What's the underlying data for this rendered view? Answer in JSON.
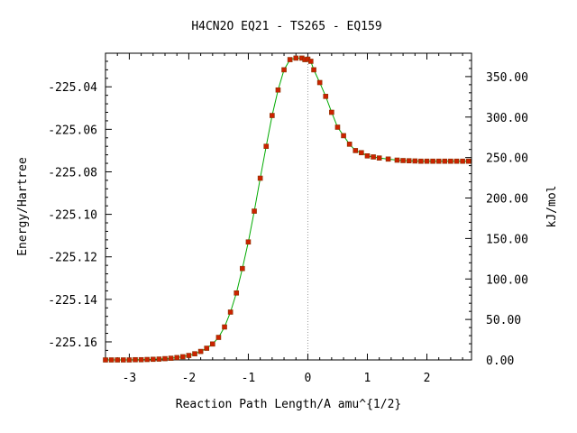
{
  "chart_data": {
    "type": "line",
    "title": "H4CN2O   EQ21 - TS265 - EQ159",
    "xlabel": "Reaction Path Length/A amu^{1/2}",
    "ylabel": "Energy/Hartree",
    "y2label": "kJ/mol",
    "xlim": [
      -3.4,
      2.75
    ],
    "ylim": [
      -225.1685,
      -225.0242
    ],
    "xticks": [
      "-3",
      "-2",
      "-1",
      "0",
      "1",
      "2"
    ],
    "xtick_values": [
      -3,
      -2,
      -1,
      0,
      1,
      2
    ],
    "yticks": [
      "-225.04",
      "-225.06",
      "-225.08",
      "-225.10",
      "-225.12",
      "-225.14",
      "-225.16"
    ],
    "ytick_values": [
      -225.04,
      -225.06,
      -225.08,
      -225.1,
      -225.12,
      -225.14,
      -225.16
    ],
    "y2ticks": [
      "0.00",
      "50.00",
      "100.00",
      "150.00",
      "200.00",
      "250.00",
      "300.00",
      "350.00"
    ],
    "y2tick_values": [
      0,
      50,
      100,
      150,
      200,
      250,
      300,
      350
    ],
    "y2_zero_hartree": -225.1685,
    "hartree_to_kjmol": 2625.5,
    "ts_marker_x": 0,
    "line_color": "#00aa00",
    "marker_color": "#cc2200",
    "series": [
      {
        "x": [
          -3.4,
          -3.3,
          -3.2,
          -3.1,
          -3.0,
          -2.9,
          -2.8,
          -2.7,
          -2.6,
          -2.5,
          -2.4,
          -2.3,
          -2.2,
          -2.1,
          -2.0,
          -1.9,
          -1.8,
          -1.7,
          -1.6,
          -1.5,
          -1.4,
          -1.3,
          -1.2,
          -1.1,
          -1.0,
          -0.9,
          -0.8,
          -0.7,
          -0.6,
          -0.5,
          -0.4,
          -0.3,
          -0.2,
          -0.1,
          -0.05,
          0.0,
          0.05,
          0.1,
          0.2,
          0.3,
          0.4,
          0.5,
          0.6,
          0.7,
          0.8,
          0.9,
          1.0,
          1.1,
          1.2,
          1.35,
          1.5,
          1.6,
          1.7,
          1.8,
          1.9,
          2.0,
          2.1,
          2.2,
          2.3,
          2.4,
          2.5,
          2.6,
          2.7
        ],
        "y": [
          -225.1685,
          -225.1685,
          -225.1685,
          -225.1685,
          -225.1685,
          -225.1684,
          -225.1684,
          -225.1683,
          -225.1682,
          -225.1681,
          -225.1679,
          -225.1677,
          -225.1674,
          -225.167,
          -225.1664,
          -225.1656,
          -225.1645,
          -225.163,
          -225.161,
          -225.1579,
          -225.153,
          -225.146,
          -225.137,
          -225.1255,
          -225.113,
          -225.0985,
          -225.083,
          -225.068,
          -225.0535,
          -225.0415,
          -225.032,
          -225.0272,
          -225.0265,
          -225.0265,
          -225.0272,
          -225.027,
          -225.028,
          -225.032,
          -225.038,
          -225.0445,
          -225.052,
          -225.059,
          -225.063,
          -225.067,
          -225.07,
          -225.071,
          -225.0725,
          -225.073,
          -225.0735,
          -225.074,
          -225.0745,
          -225.0747,
          -225.0748,
          -225.0749,
          -225.075,
          -225.075,
          -225.075,
          -225.075,
          -225.075,
          -225.075,
          -225.075,
          -225.075,
          -225.075
        ]
      }
    ]
  }
}
